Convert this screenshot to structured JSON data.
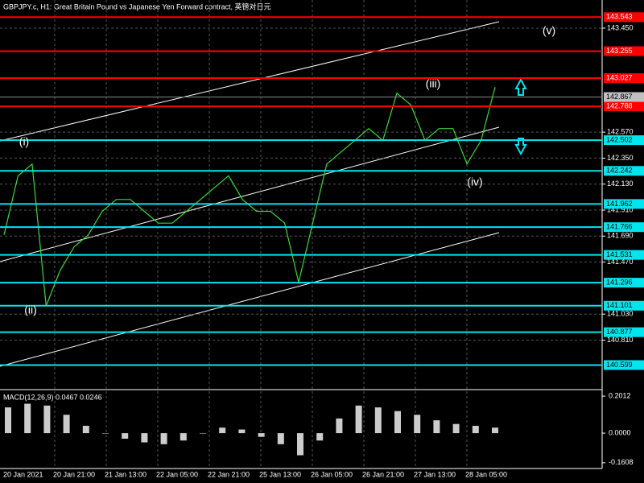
{
  "chart_data": [
    {
      "type": "line",
      "title": "GBPJPY.c, H1:  Great Britain Pound vs Japanese Yen Forward contract, 英镑对日元",
      "values": [
        141.7,
        142.2,
        142.3,
        141.1,
        141.4,
        141.6,
        141.7,
        141.9,
        142.0,
        142.0,
        141.9,
        141.8,
        141.8,
        141.9,
        142.0,
        142.1,
        142.2,
        142.0,
        141.9,
        141.9,
        141.8,
        141.3,
        141.8,
        142.3,
        142.4,
        142.5,
        142.6,
        142.5,
        142.9,
        142.8,
        142.5,
        142.6,
        142.6,
        142.3,
        142.5,
        142.95
      ],
      "color": "#33dd33",
      "ylim": [
        140.391,
        143.688
      ],
      "yticks": [
        {
          "value": 143.45,
          "label": "143.450"
        },
        {
          "value": 142.57,
          "label": "142.570"
        },
        {
          "value": 142.35,
          "label": "142.350"
        },
        {
          "value": 142.13,
          "label": "142.130"
        },
        {
          "value": 141.91,
          "label": "141.910"
        },
        {
          "value": 141.69,
          "label": "141.690"
        },
        {
          "value": 141.47,
          "label": "141.470"
        },
        {
          "value": 141.03,
          "label": "141.030"
        },
        {
          "value": 140.81,
          "label": "140.810"
        }
      ],
      "grid": true,
      "levels": [
        {
          "value": 143.543,
          "color": "#ff0000"
        },
        {
          "value": 143.255,
          "color": "#ff0000"
        },
        {
          "value": 143.027,
          "color": "#ff0000"
        },
        {
          "value": 142.788,
          "color": "#ff0000"
        },
        {
          "value": 142.502,
          "color": "#00e5ee"
        },
        {
          "value": 142.242,
          "color": "#00e5ee"
        },
        {
          "value": 141.962,
          "color": "#00e5ee"
        },
        {
          "value": 141.766,
          "color": "#00e5ee"
        },
        {
          "value": 141.531,
          "color": "#00e5ee"
        },
        {
          "value": 141.296,
          "color": "#00e5ee"
        },
        {
          "value": 141.101,
          "color": "#00e5ee"
        },
        {
          "value": 140.877,
          "color": "#00e5ee"
        },
        {
          "value": 140.599,
          "color": "#00e5ee"
        }
      ],
      "current_price": 142.867,
      "xtick_labels": [
        "20 Jan 2021",
        "20 Jan 21:00",
        "21 Jan 13:00",
        "22 Jan 05:00",
        "22 Jan 21:00",
        "25 Jan 13:00",
        "26 Jan 05:00",
        "26 Jan 21:00",
        "27 Jan 13:00",
        "28 Jan 05:00"
      ],
      "annotations": [
        "(i)",
        "(ii)",
        "(iii)",
        "(iv)",
        "(v)"
      ]
    },
    {
      "type": "bar",
      "title": "MACD(12,26,9) 0.0467 0.0246",
      "values": [
        0.14,
        0.16,
        0.15,
        0.1,
        0.04,
        0.0,
        -0.03,
        -0.05,
        -0.06,
        -0.04,
        0.0,
        0.03,
        0.02,
        -0.02,
        -0.06,
        -0.12,
        -0.04,
        0.08,
        0.15,
        0.14,
        0.12,
        0.1,
        0.07,
        0.05,
        0.04,
        0.03
      ],
      "color": "#cccccc",
      "ylim": [
        -0.192,
        0.2235
      ],
      "yticks": [
        0.2012,
        {
          "value": 0,
          "label": "0.0000"
        },
        -0.1608
      ]
    }
  ]
}
